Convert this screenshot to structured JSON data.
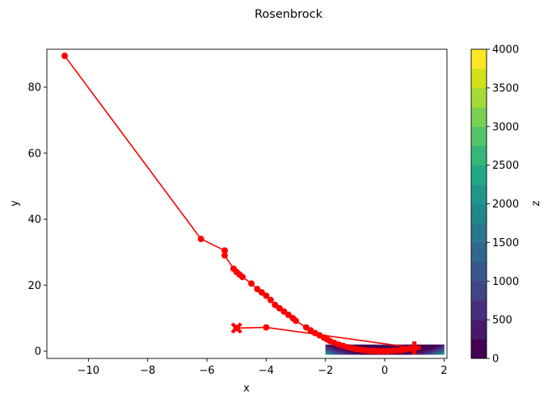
{
  "chart_data": {
    "type": "line",
    "title": "Rosenbrock",
    "xlabel": "x",
    "ylabel": "y",
    "xlim": [
      -11.4,
      2.1
    ],
    "ylim": [
      -2.2,
      91.5
    ],
    "x_ticks": [
      -10,
      -8,
      -6,
      -4,
      -2,
      0,
      2
    ],
    "y_ticks": [
      0,
      20,
      40,
      60,
      80
    ],
    "grid": false,
    "contour": {
      "x_range": [
        -2,
        2
      ],
      "y_range": [
        -1,
        2
      ],
      "levels": [
        0,
        250,
        500,
        750,
        1000,
        1250,
        1500,
        1750,
        2000,
        2250,
        2500,
        2750,
        3000,
        3250,
        3500,
        3750,
        4000
      ],
      "colormap": "viridis"
    },
    "colorbar": {
      "label": "z",
      "min": 0,
      "max": 4000,
      "ticks": [
        0,
        500,
        1000,
        1500,
        2000,
        2500,
        3000,
        3500,
        4000
      ]
    },
    "series": [
      {
        "color": "#ff0000",
        "marker": "circle",
        "x": [
          -10.8,
          -6.2,
          -5.4,
          -5.4,
          -5.1,
          -5.0,
          -4.9,
          -4.8,
          -4.5,
          -4.3,
          -4.15,
          -4.0,
          -3.85,
          -3.7,
          -3.55,
          -3.4,
          -3.25,
          -3.1,
          -3.0,
          -2.65,
          -2.5,
          -2.35,
          -2.2,
          -2.05,
          -1.95,
          -1.85,
          -1.7,
          -1.55,
          -1.4,
          -1.25,
          -1.1,
          -0.95,
          -0.8,
          -0.65,
          -0.5,
          -0.35,
          -0.2,
          -0.05,
          0.1,
          0.25,
          0.4,
          0.55,
          0.7,
          0.85,
          1.0,
          -4.0,
          -5.0
        ],
        "y": [
          89.5,
          34.0,
          30.5,
          29.0,
          25.0,
          24.0,
          23.2,
          22.5,
          20.5,
          18.8,
          17.8,
          16.8,
          15.5,
          14.0,
          13.0,
          12.0,
          11.0,
          10.0,
          9.2,
          7.2,
          6.3,
          5.5,
          4.8,
          4.1,
          3.6,
          3.1,
          2.5,
          2.0,
          1.6,
          1.2,
          0.9,
          0.6,
          0.4,
          0.25,
          0.12,
          0.05,
          0.0,
          0.0,
          0.02,
          0.08,
          0.18,
          0.3,
          0.5,
          0.75,
          1.0,
          7.2,
          7.0
        ]
      }
    ],
    "markers": [
      {
        "shape": "x",
        "color": "#ff0000",
        "x": -5.0,
        "y": 7.0
      },
      {
        "shape": "plus",
        "color": "#ff0000",
        "x": 1.0,
        "y": 1.0
      }
    ],
    "colors": {
      "viridis": [
        "#440154",
        "#481a6c",
        "#472f7d",
        "#414487",
        "#39568c",
        "#31688e",
        "#2a788e",
        "#23888e",
        "#1f988b",
        "#22a884",
        "#35b779",
        "#54c568",
        "#7ad151",
        "#a5db36",
        "#d2e21b",
        "#fde725"
      ]
    }
  }
}
